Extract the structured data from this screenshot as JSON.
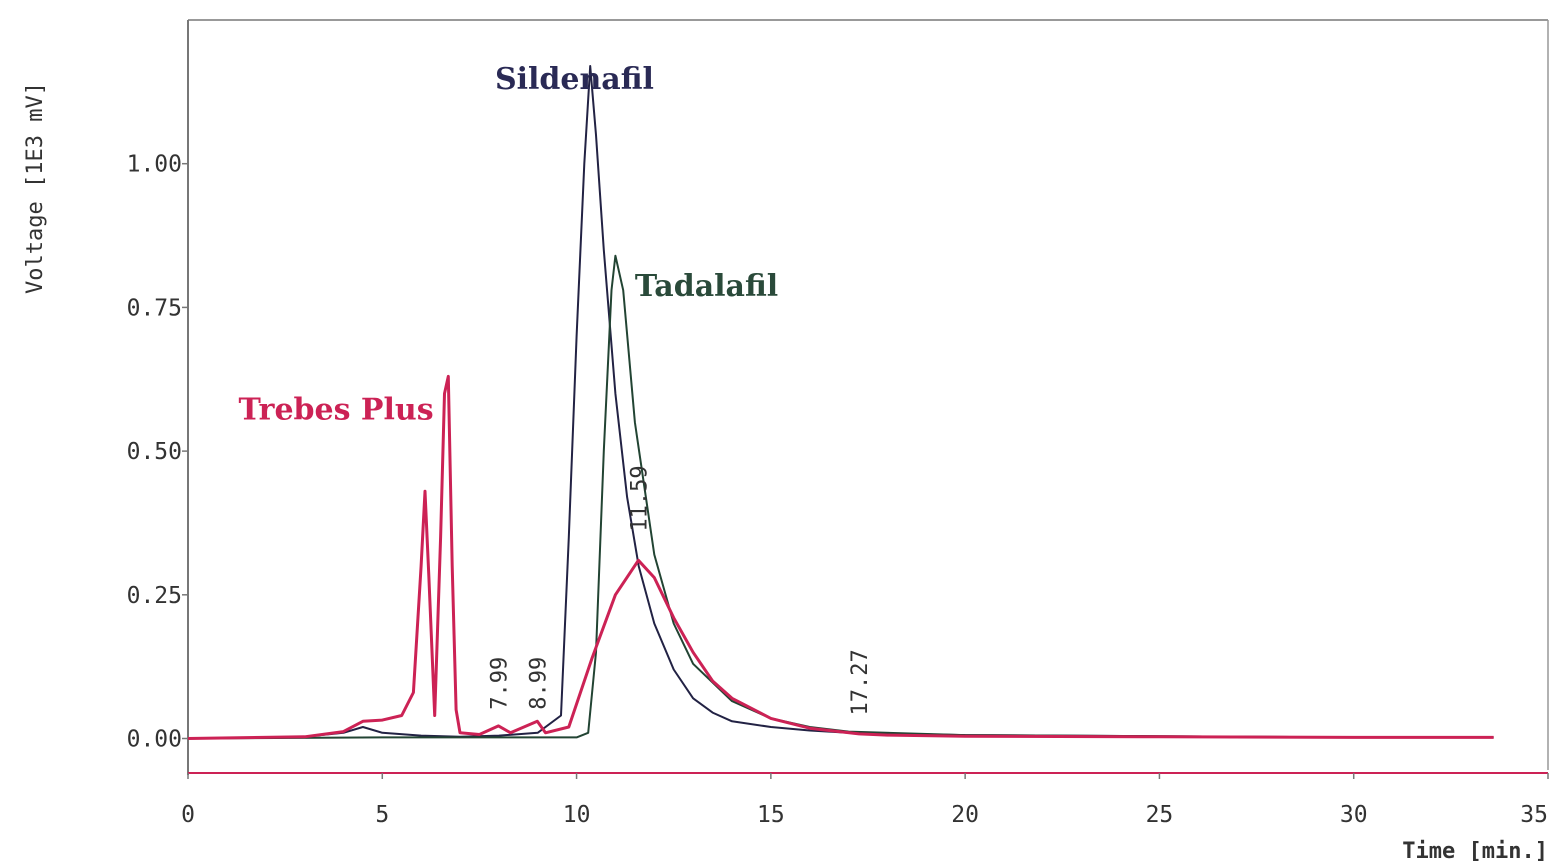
{
  "chart_data": {
    "type": "line",
    "title": "",
    "xlabel": "Time [min.]",
    "ylabel": "Voltage [1E3 mV]",
    "xlim": [
      0,
      35
    ],
    "ylim": [
      -0.06,
      1.25
    ],
    "x_ticks": [
      "0",
      "5",
      "10",
      "15",
      "20",
      "25",
      "30",
      "35"
    ],
    "y_ticks": [
      "0.00",
      "0.25",
      "0.50",
      "0.75",
      "1.00"
    ],
    "grid": false,
    "legend": "none",
    "series": [
      {
        "name": "Sildenafil",
        "color": "#222244",
        "x": [
          0,
          3,
          4,
          4.5,
          5,
          6,
          7,
          8,
          9,
          9.6,
          9.8,
          10.0,
          10.2,
          10.35,
          10.5,
          10.7,
          11.0,
          11.3,
          11.6,
          12.0,
          12.5,
          13.0,
          13.5,
          14.0,
          15.0,
          16.0,
          17.0,
          20.0,
          25.0,
          30.0,
          33.6
        ],
        "y": [
          0.0,
          0.003,
          0.01,
          0.02,
          0.01,
          0.005,
          0.003,
          0.005,
          0.01,
          0.04,
          0.35,
          0.7,
          1.0,
          1.17,
          1.05,
          0.85,
          0.6,
          0.42,
          0.3,
          0.2,
          0.12,
          0.07,
          0.045,
          0.03,
          0.02,
          0.014,
          0.01,
          0.006,
          0.004,
          0.002,
          0.002
        ]
      },
      {
        "name": "Tadalafil",
        "color": "#224433",
        "x": [
          0,
          5,
          8,
          10.0,
          10.3,
          10.5,
          10.7,
          10.9,
          11.0,
          11.2,
          11.5,
          12.0,
          12.5,
          13.0,
          14.0,
          15.0,
          16.0,
          17.0,
          20.0,
          25.0,
          30.0,
          33.6
        ],
        "y": [
          0.0,
          0.002,
          0.002,
          0.002,
          0.01,
          0.15,
          0.5,
          0.78,
          0.84,
          0.78,
          0.55,
          0.32,
          0.2,
          0.13,
          0.065,
          0.035,
          0.02,
          0.012,
          0.006,
          0.004,
          0.002,
          0.002
        ]
      },
      {
        "name": "Trebes Plus",
        "color": "#cc2255",
        "x": [
          0,
          3,
          4,
          4.5,
          5,
          5.5,
          5.8,
          6.0,
          6.1,
          6.2,
          6.35,
          6.5,
          6.6,
          6.7,
          6.8,
          6.9,
          7.0,
          7.5,
          7.99,
          8.3,
          8.99,
          9.2,
          9.8,
          10.4,
          11.0,
          11.59,
          12.0,
          12.5,
          13.0,
          13.5,
          14.0,
          15.0,
          16.0,
          17.27,
          18.0,
          20.0,
          25.0,
          30.0,
          33.6
        ],
        "y": [
          0.0,
          0.003,
          0.012,
          0.03,
          0.032,
          0.04,
          0.08,
          0.3,
          0.43,
          0.28,
          0.04,
          0.35,
          0.6,
          0.63,
          0.3,
          0.05,
          0.01,
          0.007,
          0.022,
          0.01,
          0.03,
          0.01,
          0.02,
          0.14,
          0.25,
          0.31,
          0.28,
          0.21,
          0.15,
          0.1,
          0.07,
          0.035,
          0.018,
          0.008,
          0.006,
          0.004,
          0.003,
          0.002,
          0.002
        ]
      }
    ],
    "annotations": [
      {
        "text": "Sildenafil",
        "x": 7.9,
        "y": 1.13,
        "color": "#2a2a55",
        "kind": "series-label"
      },
      {
        "text": "Tadalafil",
        "x": 11.5,
        "y": 0.77,
        "color": "#2a4a3a",
        "kind": "series-label"
      },
      {
        "text": "Trebes Plus",
        "x": 1.3,
        "y": 0.555,
        "color": "#cc2255",
        "kind": "series-label"
      },
      {
        "text": "7.99",
        "x": 7.99,
        "y": 0.05,
        "color": "#444444",
        "kind": "peak-label"
      },
      {
        "text": "8.99",
        "x": 8.99,
        "y": 0.05,
        "color": "#444444",
        "kind": "peak-label"
      },
      {
        "text": "11.59",
        "x": 11.59,
        "y": 0.36,
        "color": "#444444",
        "kind": "peak-label"
      },
      {
        "text": "17.27",
        "x": 17.27,
        "y": 0.04,
        "color": "#444444",
        "kind": "peak-label"
      }
    ]
  }
}
